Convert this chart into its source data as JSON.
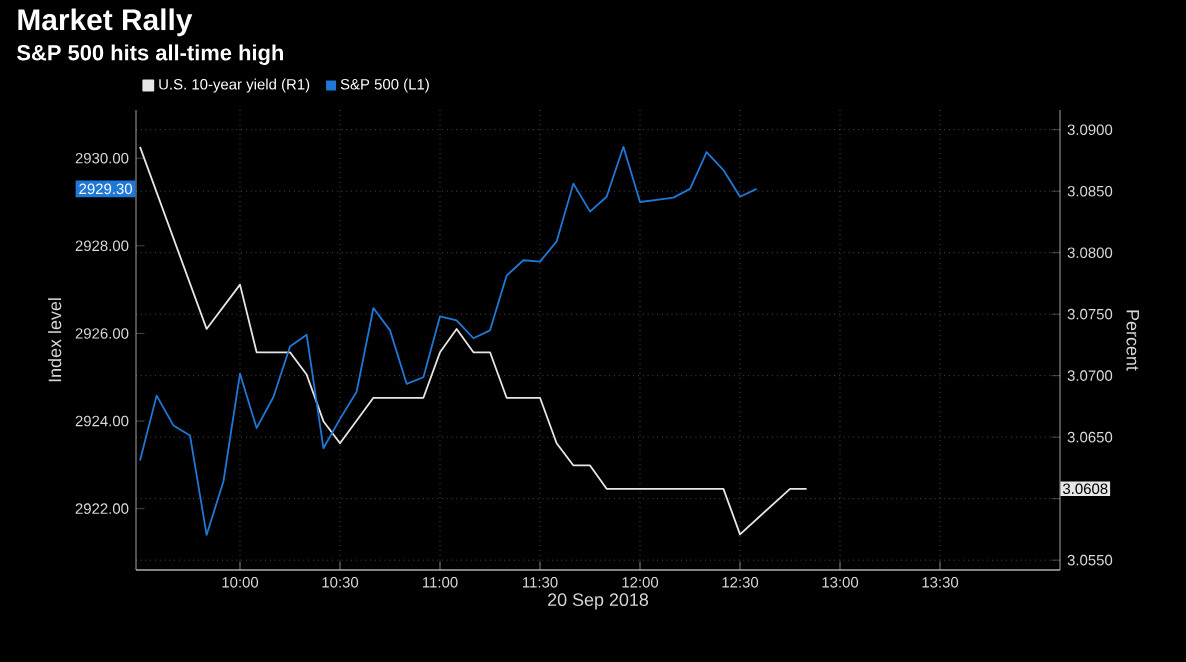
{
  "chart_data": {
    "type": "line",
    "title": "Market Rally",
    "subtitle": "S&P 500 hits all-time high",
    "xlabel": "20 Sep 2018",
    "ylabel": "Index level",
    "y2label": "Percent",
    "annotations": [
      "3.0608",
      "2929.30"
    ],
    "xlim": [
      9.48,
      14.1
    ],
    "xticks": [
      {
        "value": 10,
        "label": "10:00"
      },
      {
        "value": 10.5,
        "label": "10:30"
      },
      {
        "value": 11,
        "label": "11:00"
      },
      {
        "value": 11.5,
        "label": "11:30"
      },
      {
        "value": 12,
        "label": "12:00"
      },
      {
        "value": 12.5,
        "label": "12:30"
      },
      {
        "value": 13,
        "label": "13:00"
      },
      {
        "value": 13.5,
        "label": "13:30"
      }
    ],
    "ylim": [
      2920.6,
      2931.1
    ],
    "yticks": [
      {
        "value": 2922,
        "label": "2922.00"
      },
      {
        "value": 2924,
        "label": "2924.00"
      },
      {
        "value": 2926,
        "label": "2926.00"
      },
      {
        "value": 2928,
        "label": "2928.00"
      },
      {
        "value": 2930,
        "label": "2930.00"
      }
    ],
    "y2lim": [
      3.0542,
      3.0916
    ],
    "y2ticks": [
      {
        "value": 3.055,
        "label": "3.0550"
      },
      {
        "value": 3.06,
        "label": null
      },
      {
        "value": 3.065,
        "label": "3.0650"
      },
      {
        "value": 3.07,
        "label": "3.0700"
      },
      {
        "value": 3.075,
        "label": "3.0750"
      },
      {
        "value": 3.08,
        "label": "3.0800"
      },
      {
        "value": 3.085,
        "label": "3.0850"
      },
      {
        "value": 3.09,
        "label": "3.0900"
      }
    ],
    "grid": true,
    "legend": "top left",
    "marker": "none",
    "line_style": "solid",
    "series": [
      {
        "name": "U.S. 10-year yield (R1)",
        "color": "#e6e6e6",
        "axis": "y2",
        "x": [
          9.5,
          9.833,
          10,
          10.083,
          10.25,
          10.333,
          10.417,
          10.5,
          10.667,
          10.917,
          11,
          11.083,
          11.167,
          11.25,
          11.333,
          11.5,
          11.583,
          11.667,
          11.75,
          11.833,
          12.417,
          12.5,
          12.75,
          12.833
        ],
        "values": [
          3.0886,
          3.0738,
          3.0774,
          3.0719,
          3.0719,
          3.0701,
          3.0663,
          3.0645,
          3.0682,
          3.0682,
          3.0719,
          3.0738,
          3.0719,
          3.0719,
          3.0682,
          3.0682,
          3.0645,
          3.0627,
          3.0627,
          3.0608,
          3.0608,
          3.0571,
          3.0608,
          3.0608
        ]
      },
      {
        "name": "S&P 500 (L1)",
        "color": "#1f78d8",
        "x": [
          9.5,
          9.583,
          9.667,
          9.75,
          9.833,
          9.917,
          10,
          10.083,
          10.167,
          10.25,
          10.333,
          10.417,
          10.5,
          10.583,
          10.667,
          10.75,
          10.833,
          10.917,
          11,
          11.083,
          11.167,
          11.25,
          11.333,
          11.417,
          11.5,
          11.583,
          11.667,
          11.75,
          11.833,
          11.917,
          12,
          12.083,
          12.167,
          12.25,
          12.333,
          12.417,
          12.5,
          12.583
        ],
        "values": [
          2923.1,
          2924.58,
          2923.9,
          2923.67,
          2921.4,
          2922.62,
          2925.08,
          2923.84,
          2924.55,
          2925.7,
          2925.97,
          2923.38,
          2924.05,
          2924.67,
          2926.58,
          2926.07,
          2924.85,
          2925.0,
          2926.39,
          2926.3,
          2925.89,
          2926.07,
          2927.32,
          2927.67,
          2927.64,
          2928.1,
          2929.42,
          2928.78,
          2929.12,
          2930.26,
          2929.0,
          2929.05,
          2929.1,
          2929.3,
          2930.14,
          2929.73,
          2929.12,
          2929.3
        ]
      }
    ]
  }
}
